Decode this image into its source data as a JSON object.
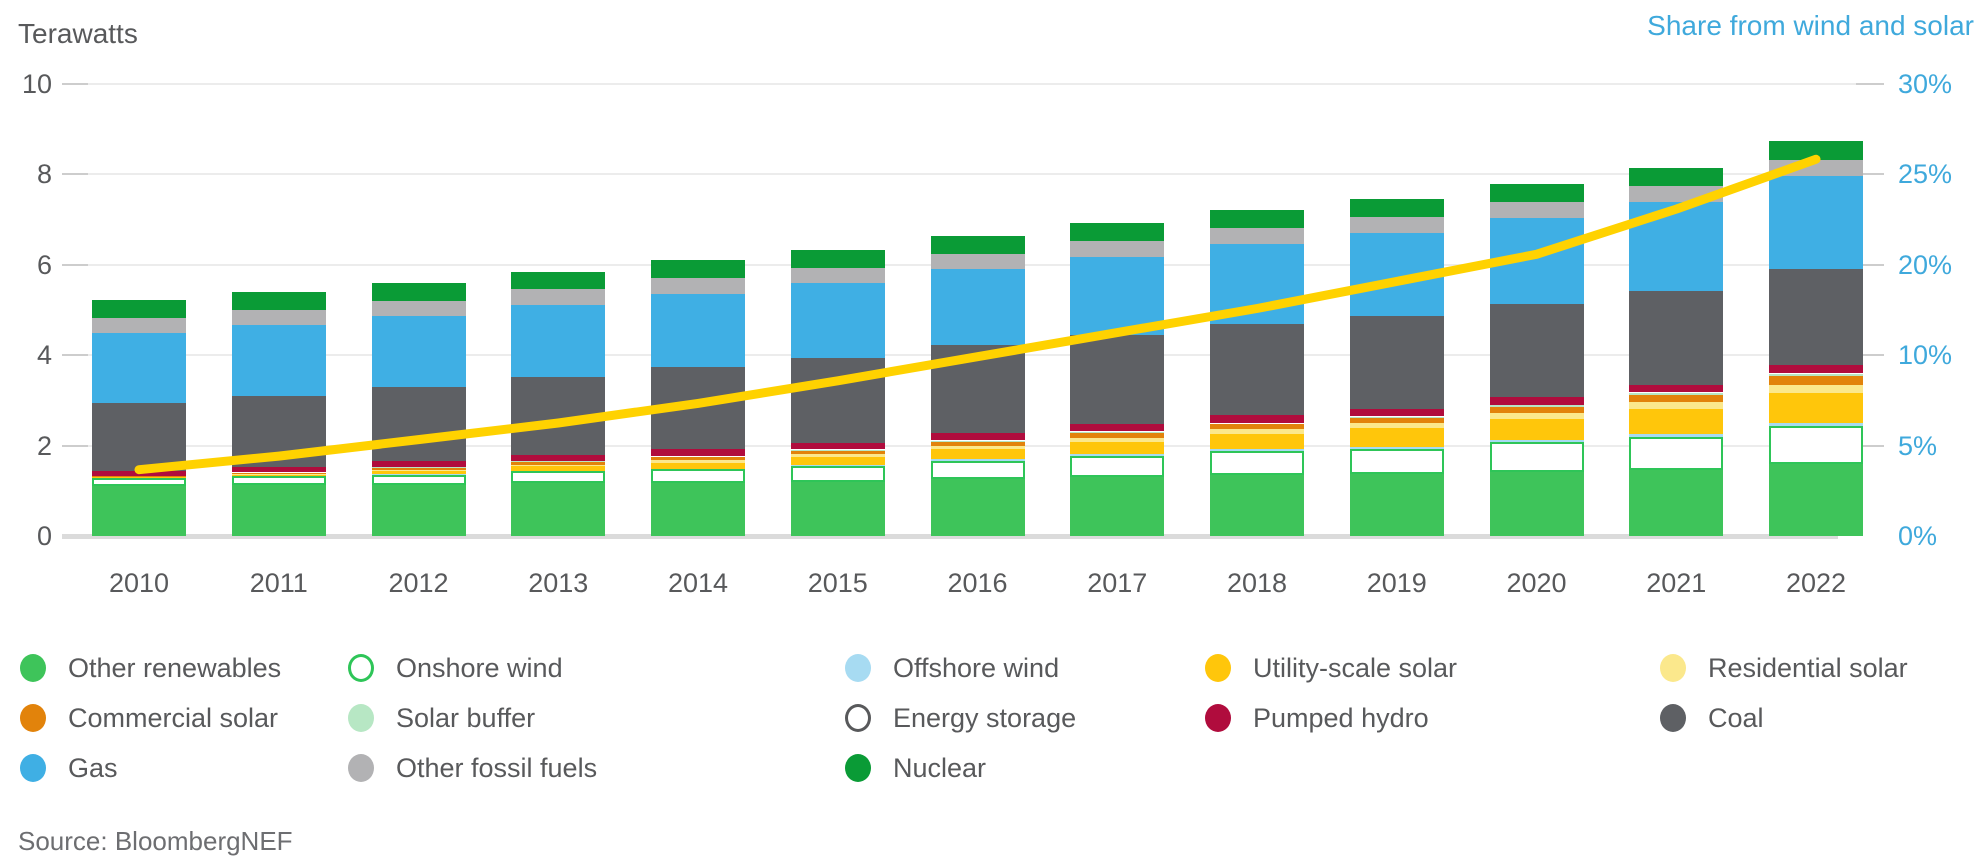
{
  "header": {
    "left_axis_title": "Terawatts",
    "right_axis_title": "Share from wind and solar"
  },
  "source_text": "Source: BloombergNEF",
  "colors": {
    "accent_blue": "#3FA9DC",
    "line_yellow": "#FFD200",
    "text_gray": "#58595B",
    "gridline": "#ECECEC",
    "baseline": "#DBDBDB"
  },
  "chart_data": {
    "type": "bar",
    "subtype": "stacked-bar-with-line-overlay",
    "title": "",
    "ylabel": "Terawatts",
    "y2label": "Share from wind and solar",
    "ylim": [
      0,
      10
    ],
    "y2lim": [
      0,
      30
    ],
    "grid": true,
    "legend_position": "bottom",
    "left_ticks": [
      "10",
      "8",
      "6",
      "4",
      "2",
      "0"
    ],
    "right_ticks": [
      "30%",
      "25%",
      "20%",
      "10%",
      "5%",
      "0%"
    ],
    "categories": [
      "2010",
      "2011",
      "2012",
      "2013",
      "2014",
      "2015",
      "2016",
      "2017",
      "2018",
      "2019",
      "2020",
      "2021",
      "2022"
    ],
    "series": [
      {
        "name": "Other renewables",
        "color": "#3EC45A",
        "values": [
          1.1,
          1.12,
          1.13,
          1.17,
          1.18,
          1.2,
          1.27,
          1.31,
          1.36,
          1.37,
          1.41,
          1.45,
          1.6
        ]
      },
      {
        "name": "Onshore wind",
        "color": "#FFFFFF",
        "outline": "#2EC558",
        "values": [
          0.18,
          0.2,
          0.23,
          0.26,
          0.3,
          0.35,
          0.4,
          0.46,
          0.51,
          0.56,
          0.66,
          0.75,
          0.84
        ]
      },
      {
        "name": "Offshore wind",
        "color": "#A7DBF2",
        "values": [
          0.0,
          0.0,
          0.01,
          0.01,
          0.01,
          0.02,
          0.03,
          0.04,
          0.05,
          0.05,
          0.05,
          0.06,
          0.07
        ]
      },
      {
        "name": "Utility-scale solar",
        "color": "#FFC60B",
        "values": [
          0.02,
          0.04,
          0.07,
          0.1,
          0.13,
          0.17,
          0.22,
          0.28,
          0.34,
          0.4,
          0.47,
          0.55,
          0.66
        ]
      },
      {
        "name": "Residential solar",
        "color": "#FBE88C",
        "values": [
          0.01,
          0.02,
          0.03,
          0.04,
          0.06,
          0.07,
          0.08,
          0.09,
          0.1,
          0.11,
          0.13,
          0.15,
          0.18
        ]
      },
      {
        "name": "Commercial solar",
        "color": "#E2830B",
        "values": [
          0.01,
          0.02,
          0.04,
          0.06,
          0.07,
          0.08,
          0.09,
          0.1,
          0.11,
          0.12,
          0.14,
          0.17,
          0.2
        ]
      },
      {
        "name": "Solar buffer",
        "color": "#B7E7C4",
        "values": [
          0.0,
          0.0,
          0.01,
          0.01,
          0.01,
          0.02,
          0.02,
          0.02,
          0.02,
          0.03,
          0.03,
          0.03,
          0.03
        ]
      },
      {
        "name": "Energy storage",
        "color": "#FFFFFF",
        "outline": "#58595B",
        "values": [
          0.01,
          0.01,
          0.01,
          0.01,
          0.01,
          0.01,
          0.01,
          0.02,
          0.02,
          0.02,
          0.02,
          0.02,
          0.03
        ]
      },
      {
        "name": "Pumped hydro",
        "color": "#B00C3D",
        "values": [
          0.1,
          0.12,
          0.14,
          0.14,
          0.15,
          0.15,
          0.15,
          0.16,
          0.16,
          0.16,
          0.17,
          0.17,
          0.18
        ]
      },
      {
        "name": "Coal",
        "color": "#5E6064",
        "values": [
          1.52,
          1.58,
          1.62,
          1.72,
          1.82,
          1.88,
          1.95,
          1.98,
          2.02,
          2.05,
          2.06,
          2.08,
          2.12
        ]
      },
      {
        "name": "Gas",
        "color": "#3FAFE4",
        "values": [
          1.55,
          1.56,
          1.58,
          1.6,
          1.62,
          1.65,
          1.68,
          1.72,
          1.78,
          1.83,
          1.9,
          1.96,
          2.05
        ]
      },
      {
        "name": "Other fossil fuels",
        "color": "#B2B2B4",
        "values": [
          0.33,
          0.33,
          0.34,
          0.34,
          0.34,
          0.34,
          0.35,
          0.35,
          0.35,
          0.35,
          0.35,
          0.35,
          0.36
        ]
      },
      {
        "name": "Nuclear",
        "color": "#0A9B36",
        "values": [
          0.39,
          0.39,
          0.39,
          0.39,
          0.4,
          0.4,
          0.4,
          0.4,
          0.4,
          0.41,
          0.41,
          0.41,
          0.42
        ]
      }
    ],
    "line_series": {
      "name": "Share from wind and solar",
      "color": "#FFD200",
      "axis": "right",
      "values_pct": [
        4.4,
        5.3,
        6.4,
        7.5,
        8.8,
        10.3,
        11.9,
        13.5,
        15.1,
        16.9,
        18.7,
        21.7,
        25.0
      ]
    }
  },
  "legend": {
    "row_major_order": [
      "Other renewables",
      "Onshore wind",
      "Offshore wind",
      "Utility-scale solar",
      "Residential solar",
      "Commercial solar",
      "Solar buffer",
      "Energy storage",
      "Pumped hydro",
      "Coal",
      "Gas",
      "Other fossil fuels",
      "Nuclear"
    ]
  }
}
